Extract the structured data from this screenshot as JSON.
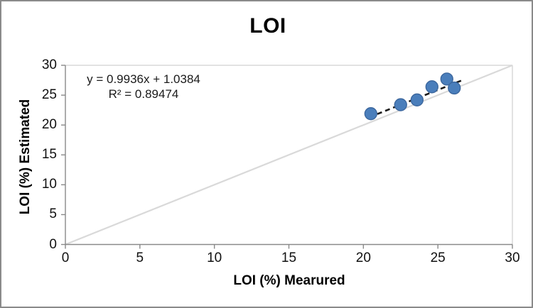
{
  "chart_data": {
    "type": "scatter",
    "title": "LOI",
    "xlabel": "LOI (%) Mearured",
    "ylabel": "LOI (%) Estimated",
    "xlim": [
      0,
      30
    ],
    "ylim": [
      0,
      30
    ],
    "xticks": [
      0,
      5,
      10,
      15,
      20,
      25,
      30
    ],
    "yticks": [
      0,
      5,
      10,
      15,
      20,
      25,
      30
    ],
    "grid": false,
    "legend": "none",
    "points": [
      {
        "x": 20.5,
        "y": 21.9
      },
      {
        "x": 22.5,
        "y": 23.4
      },
      {
        "x": 23.6,
        "y": 24.2
      },
      {
        "x": 24.6,
        "y": 26.4
      },
      {
        "x": 25.6,
        "y": 27.7
      },
      {
        "x": 26.1,
        "y": 26.2
      }
    ],
    "marker": {
      "fill": "#4a7ebb",
      "stroke": "#3a659c",
      "radius": 8.5
    },
    "trendline": {
      "equation": "y = 0.9936x + 1.0384",
      "r_squared": "R² = 0.89474",
      "slope": 0.9936,
      "intercept": 1.0384,
      "x_start": 20.4,
      "x_end": 26.6,
      "color": "#1a1a1a",
      "style": "dashed"
    },
    "identity_line": {
      "x1": 0,
      "y1": 0,
      "x2": 30,
      "y2": 30,
      "color": "#d9d9d9"
    },
    "axis_color": "#898989",
    "plot_border_color": "#d9d9d9"
  }
}
